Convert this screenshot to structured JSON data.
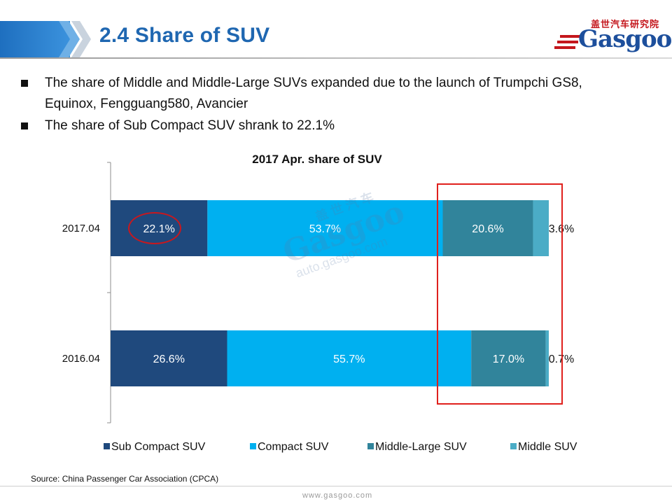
{
  "header": {
    "title": "2.4 Share of SUV",
    "logo_cn": "盖世汽车研究院",
    "logo_word": "Gasgoo"
  },
  "bullets": [
    "The share of Middle and Middle-Large SUVs expanded due to the launch of Trumpchi GS8, Equinox, Fengguang580, Avancier",
    "The share of Sub Compact SUV shrank to 22.1%"
  ],
  "watermark": {
    "cn": "盖 世 汽 车",
    "word": "Gasgoo",
    "url": "auto.gasgoo.com"
  },
  "chart_data": {
    "type": "bar",
    "orientation": "horizontal",
    "stacked": true,
    "title": "2017 Apr. share of SUV",
    "categories": [
      "2017.04",
      "2016.04"
    ],
    "series": [
      {
        "name": "Sub Compact SUV",
        "values": [
          22.1,
          26.6
        ],
        "labels": [
          "22.1%",
          "26.6%"
        ],
        "color": "#1f497d"
      },
      {
        "name": "Compact SUV",
        "values": [
          53.7,
          55.7
        ],
        "labels": [
          "53.7%",
          "55.7%"
        ],
        "color": "#00b0f0"
      },
      {
        "name": "Middle-Large SUV",
        "values": [
          20.6,
          17.0
        ],
        "labels": [
          "20.6%",
          "17.0%"
        ],
        "color": "#31849b"
      },
      {
        "name": "Middle SUV",
        "values": [
          3.6,
          0.7
        ],
        "labels": [
          "3.6%",
          "0.7%"
        ],
        "color": "#4bacc6"
      }
    ],
    "xlim": [
      0,
      100
    ],
    "grid": false,
    "legend_position": "bottom",
    "highlight_color": "#e0201c"
  },
  "footer": {
    "source": "Source: China Passenger Car Association (CPCA)",
    "url": "www.gasgoo.com"
  }
}
